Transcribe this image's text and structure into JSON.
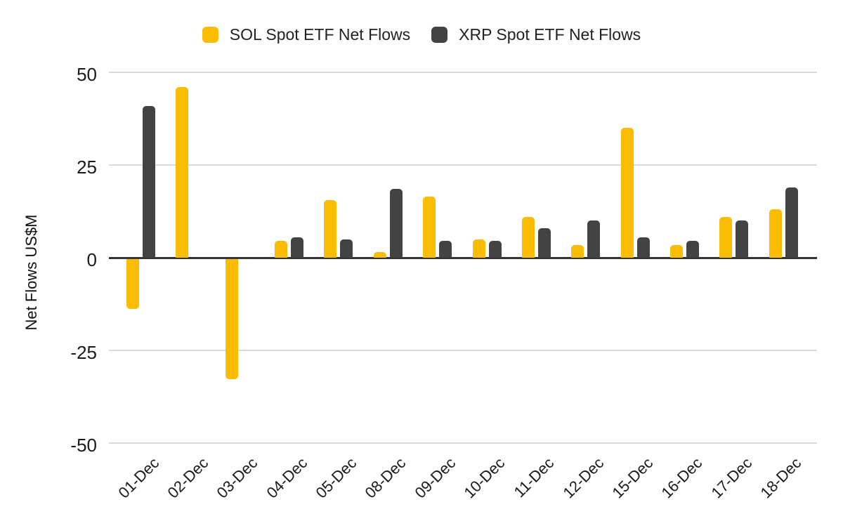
{
  "chart_data": {
    "type": "bar",
    "title": "",
    "xlabel": "",
    "ylabel": "Net Flows US$M",
    "categories": [
      "01-Dec",
      "02-Dec",
      "03-Dec",
      "04-Dec",
      "05-Dec",
      "08-Dec",
      "09-Dec",
      "10-Dec",
      "11-Dec",
      "12-Dec",
      "15-Dec",
      "16-Dec",
      "17-Dec",
      "18-Dec"
    ],
    "series": [
      {
        "name": "SOL Spot ETF Net Flows",
        "color": "#FBBC04",
        "values": [
          -13.5,
          46,
          -32.5,
          4.5,
          15.5,
          1.5,
          16.5,
          5,
          11,
          3.5,
          35,
          3.5,
          11,
          13
        ]
      },
      {
        "name": "XRP Spot ETF Net Flows",
        "color": "#434343",
        "values": [
          41,
          0,
          0,
          5.5,
          5,
          18.5,
          4.5,
          4.5,
          8,
          10,
          5.5,
          4.5,
          10,
          19
        ]
      }
    ],
    "ylim": [
      -50,
      50
    ],
    "yticks": [
      50,
      25,
      0,
      -25,
      -50
    ],
    "grid": true,
    "legend_position": "top",
    "colors": {
      "gridline": "#D9D9D9",
      "zero_line": "#333333",
      "tick_text": "#1A1A1A",
      "background": "#FFFFFF"
    }
  }
}
